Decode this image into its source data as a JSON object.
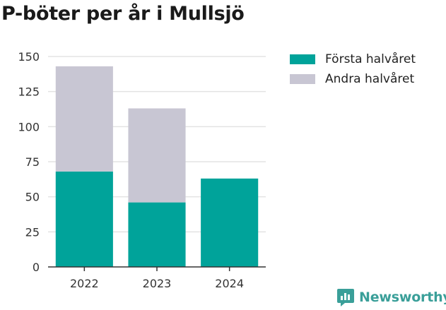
{
  "title": "P-böter per år i Mullsjö",
  "brand": "Newsworthy",
  "colors": {
    "first": "#00a39a",
    "second": "#c8c6d3",
    "grid": "#e3e3e3",
    "axis": "#333333",
    "brand": "#3a9f99"
  },
  "icons": {
    "brand": "newsworthy-logo-icon"
  },
  "chart_data": {
    "type": "bar",
    "stacked": true,
    "title": "P-böter per år i Mullsjö",
    "categories": [
      "2022",
      "2023",
      "2024"
    ],
    "series": [
      {
        "name": "Första halvåret",
        "values": [
          68,
          46,
          63
        ]
      },
      {
        "name": "Andra halvåret",
        "values": [
          75,
          67,
          0
        ]
      }
    ],
    "ylim": [
      0,
      150
    ],
    "yticks": [
      0,
      25,
      50,
      75,
      100,
      125,
      150
    ],
    "grid": true,
    "legend": "right"
  }
}
